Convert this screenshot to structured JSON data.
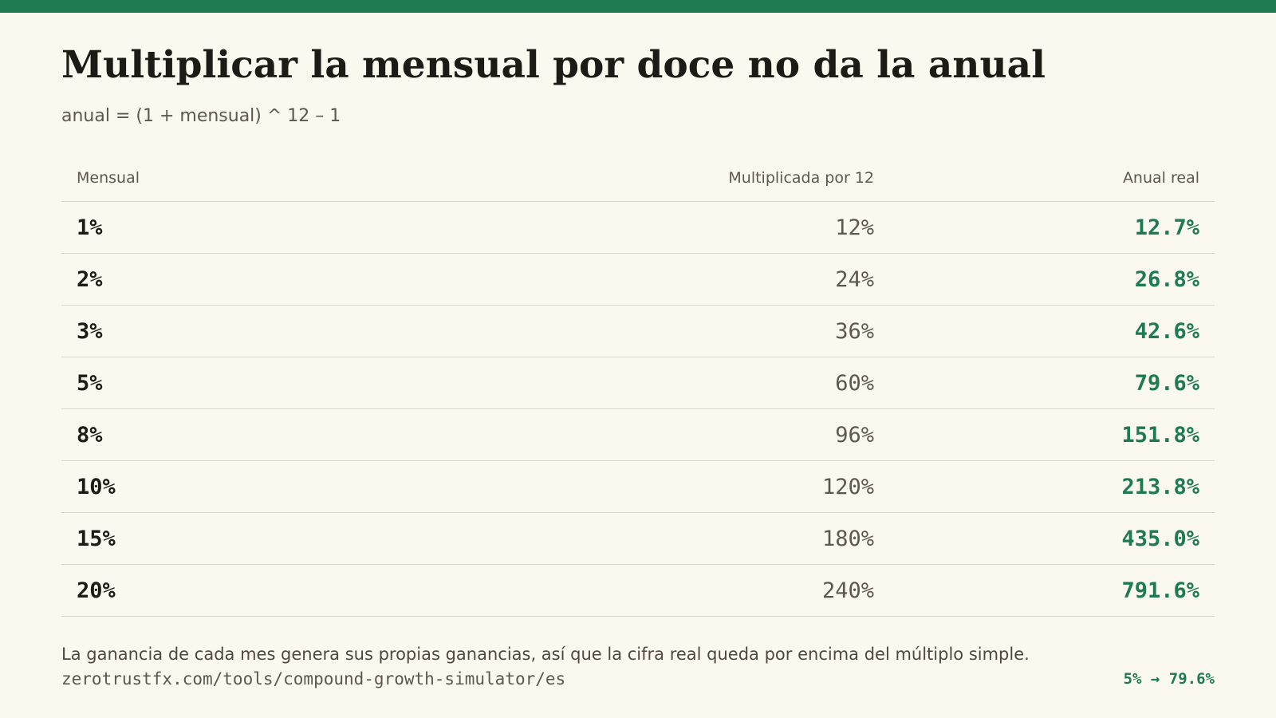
{
  "colors": {
    "accent": "#1e7a4f",
    "background": "#fbf8f0",
    "text": "#1e1a16",
    "muted": "#5e574e",
    "rule": "#d9d4c7"
  },
  "header": {
    "title": "Multiplicar la mensual por doce no da la anual",
    "subtitle": "anual = (1 + mensual) ^ 12 – 1"
  },
  "table": {
    "columns": [
      "Mensual",
      "Multiplicada por 12",
      "Anual real"
    ],
    "rows": [
      [
        "1%",
        "12%",
        "12.7%"
      ],
      [
        "2%",
        "24%",
        "26.8%"
      ],
      [
        "3%",
        "36%",
        "42.6%"
      ],
      [
        "5%",
        "60%",
        "79.6%"
      ],
      [
        "8%",
        "96%",
        "151.8%"
      ],
      [
        "10%",
        "120%",
        "213.8%"
      ],
      [
        "15%",
        "180%",
        "435.0%"
      ],
      [
        "20%",
        "240%",
        "791.6%"
      ]
    ]
  },
  "footer": {
    "note": "La ganancia de cada mes genera sus propias ganancias, así que la cifra real queda por encima del múltiplo simple.",
    "url": "zerotrustfx.com/tools/compound-growth-simulator/es",
    "badge": "5% → 79.6%"
  }
}
